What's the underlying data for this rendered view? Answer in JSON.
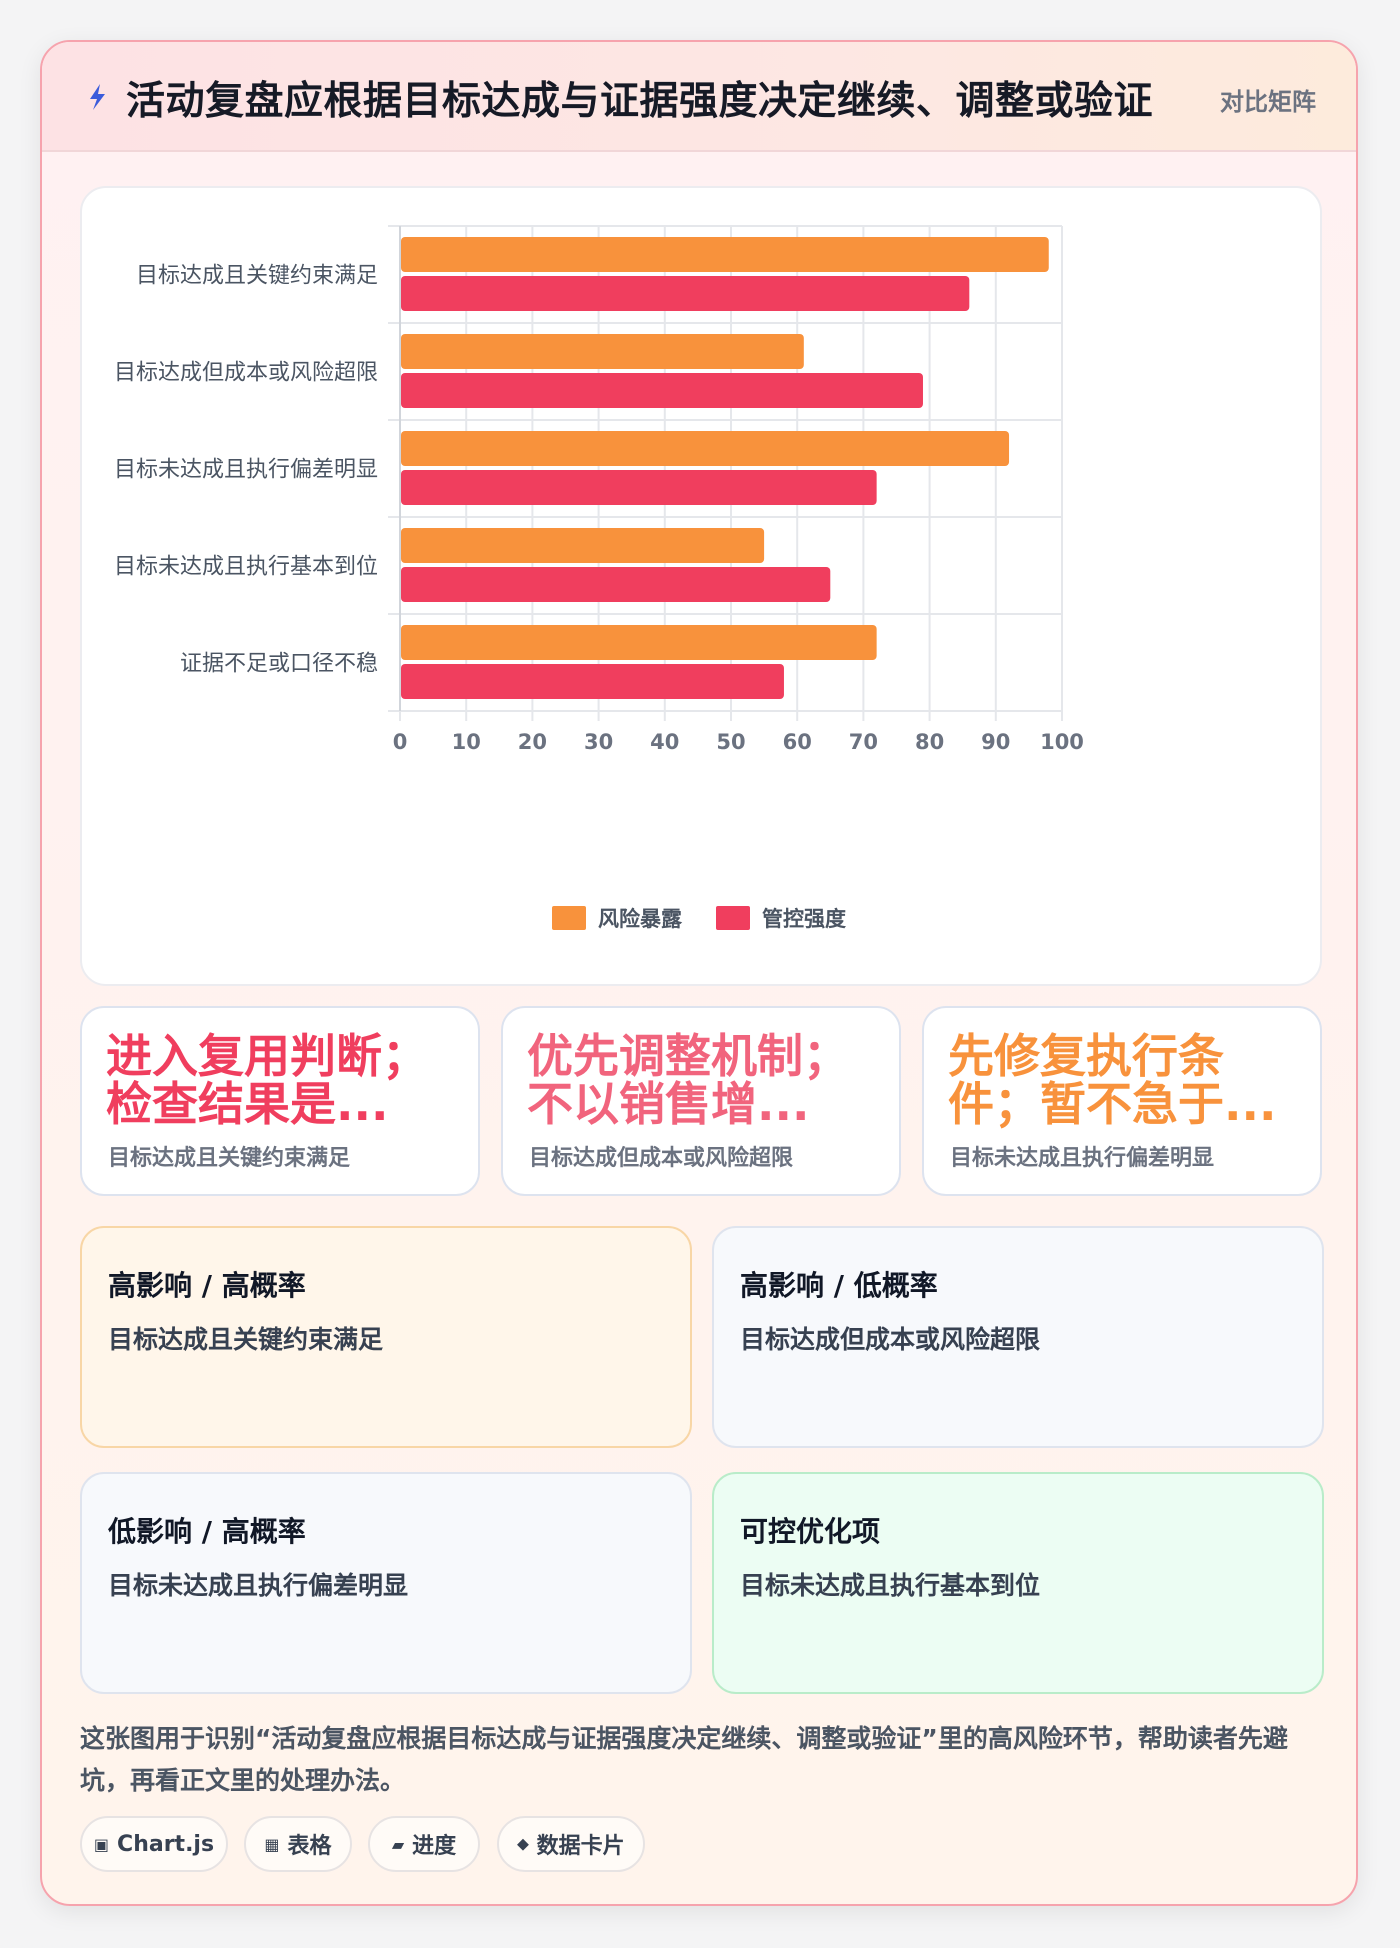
{
  "header": {
    "title": "活动复盘应根据目标达成与证据强度决定继续、调整或验证",
    "tag": "对比矩阵",
    "icon": "lightning-icon"
  },
  "colors": {
    "orange": "#f8923c",
    "red": "#f03e5e",
    "yellow_quad_bg": "#fff6ea",
    "green_quad_bg": "#ecfdf3"
  },
  "chart_data": {
    "type": "bar",
    "orientation": "horizontal",
    "categories": [
      "目标达成且关键约束满足",
      "目标达成但成本或风险超限",
      "目标未达成且执行偏差明显",
      "目标未达成且执行基本到位",
      "证据不足或口径不稳"
    ],
    "series": [
      {
        "name": "风险暴露",
        "color": "#f8923c",
        "values": [
          98,
          61,
          92,
          55,
          72
        ]
      },
      {
        "name": "管控强度",
        "color": "#f03e5e",
        "values": [
          86,
          79,
          72,
          65,
          58
        ]
      }
    ],
    "xlim": [
      0,
      100
    ],
    "xticks": [
      0,
      10,
      20,
      30,
      40,
      50,
      60,
      70,
      80,
      90,
      100
    ],
    "grid": true,
    "legend": "bottom"
  },
  "kpis": [
    {
      "value": "进入复用判断；\n检查结果是...",
      "label": "目标达成且关键约束满足",
      "color": "#f03e5e"
    },
    {
      "value": "优先调整机制；\n不以销售增...",
      "label": "目标达成但成本或风险超限",
      "color": "#f1647d"
    },
    {
      "value": "先修复执行条\n件；暂不急于...",
      "label": "目标未达成且执行偏差明显",
      "color": "#f8923c"
    }
  ],
  "quadrants": [
    {
      "title": "高影响 / 高概率",
      "text": "目标达成且关键约束满足"
    },
    {
      "title": "高影响 / 低概率",
      "text": "目标达成但成本或风险超限"
    },
    {
      "title": "低影响 / 高概率",
      "text": "目标未达成且执行偏差明显"
    },
    {
      "title": "可控优化项",
      "text": "目标未达成且执行基本到位"
    }
  ],
  "note": "这张图用于识别“活动复盘应根据目标达成与证据强度决定继续、调整或验证”里的高风险环节，帮助读者先避坑，再看正文里的处理办法。",
  "chips": [
    {
      "icon": "▣",
      "label": "Chart.js"
    },
    {
      "icon": "▦",
      "label": "表格"
    },
    {
      "icon": "▰",
      "label": "进度"
    },
    {
      "icon": "⬥",
      "label": "数据卡片"
    }
  ]
}
